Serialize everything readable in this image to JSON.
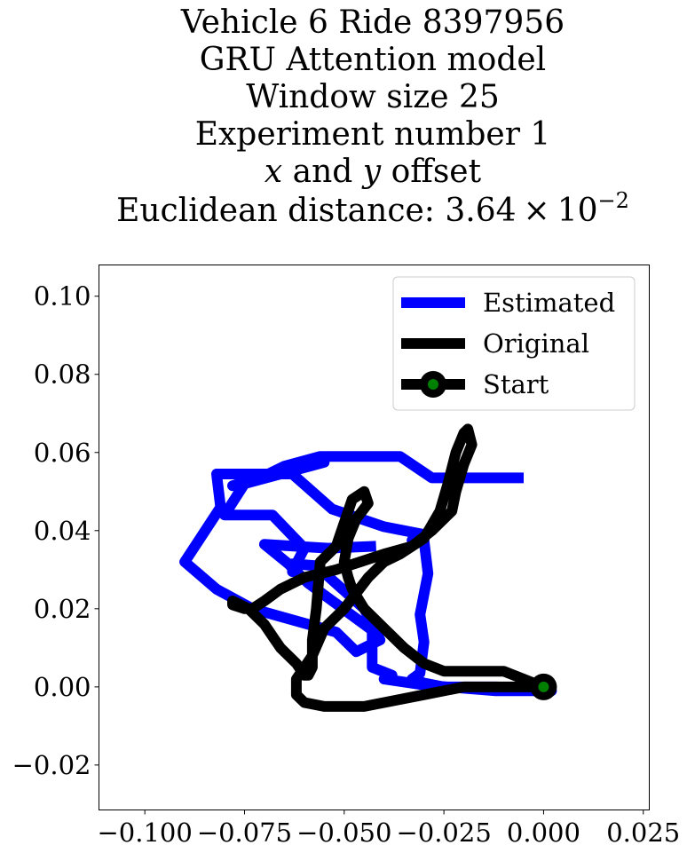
{
  "chart_data": {
    "type": "line",
    "title_lines": [
      "Vehicle 6 Ride 8397956",
      "GRU Attention model",
      "Window size 25",
      "Experiment number 1",
      "x and y offset",
      "Euclidean distance: 3.64 × 10−2"
    ],
    "title_rich": {
      "offset_x": "x",
      "offset_and": " and ",
      "offset_y": "y",
      "offset_rest": " offset",
      "dist_prefix": "Euclidean distance: 3.64",
      "dist_times": "×",
      "dist_base": "10",
      "dist_exp": "−2"
    },
    "xlim": [
      -0.1115,
      0.0265
    ],
    "ylim": [
      -0.0315,
      0.108
    ],
    "xticks": [
      {
        "value": -0.1,
        "label": "−0.100"
      },
      {
        "value": -0.075,
        "label": "−0.075"
      },
      {
        "value": -0.05,
        "label": "−0.050"
      },
      {
        "value": -0.025,
        "label": "−0.025"
      },
      {
        "value": 0.0,
        "label": "0.000"
      },
      {
        "value": 0.025,
        "label": "0.025"
      }
    ],
    "yticks": [
      {
        "value": 0.1,
        "label": "0.10"
      },
      {
        "value": 0.08,
        "label": "0.08"
      },
      {
        "value": 0.06,
        "label": "0.06"
      },
      {
        "value": 0.04,
        "label": "0.04"
      },
      {
        "value": 0.02,
        "label": "0.02"
      },
      {
        "value": 0.0,
        "label": "0.00"
      },
      {
        "value": -0.02,
        "label": "−0.02"
      }
    ],
    "grid": false,
    "legend_position": "top-right",
    "series": [
      {
        "name": "Estimated",
        "color": "#0000ff",
        "x": [
          -0.005,
          -0.028,
          -0.036,
          -0.047,
          -0.056,
          -0.065,
          -0.07,
          -0.075,
          -0.078,
          -0.058,
          -0.055,
          -0.075,
          -0.08,
          -0.068,
          -0.06,
          -0.063,
          -0.063,
          -0.057,
          -0.045,
          -0.041,
          -0.047,
          -0.052,
          -0.073,
          -0.082,
          -0.09,
          -0.081,
          -0.082,
          -0.063,
          -0.053,
          -0.04,
          -0.03,
          -0.031,
          -0.033,
          -0.03,
          -0.029,
          -0.031,
          -0.03,
          -0.031,
          -0.033,
          -0.03,
          -0.025,
          -0.018,
          -0.012,
          0.0,
          0.002,
          -0.012,
          -0.03,
          -0.04,
          -0.038,
          -0.043,
          -0.043,
          -0.059,
          -0.064,
          -0.07,
          -0.054,
          -0.042
        ],
        "y": [
          0.0535,
          0.0535,
          0.059,
          0.059,
          0.059,
          0.0565,
          0.054,
          0.052,
          0.0515,
          0.058,
          0.0575,
          0.052,
          0.044,
          0.044,
          0.0355,
          0.0295,
          0.0315,
          0.031,
          0.02,
          0.012,
          0.009,
          0.014,
          0.02,
          0.025,
          0.032,
          0.046,
          0.0545,
          0.0545,
          0.0455,
          0.041,
          0.039,
          0.0375,
          0.0375,
          0.0375,
          0.029,
          0.0185,
          0.0115,
          0.0035,
          0.002,
          0.001,
          0.0,
          0.0,
          0.0,
          -0.0005,
          -0.001,
          -0.001,
          0.0005,
          0.002,
          0.003,
          0.005,
          0.0145,
          0.0265,
          0.0315,
          0.0365,
          0.0355,
          0.036
        ]
      },
      {
        "name": "Original",
        "color": "#000000",
        "x": [
          0.0,
          -0.01,
          -0.02,
          -0.03,
          -0.04,
          -0.045,
          -0.05,
          -0.055,
          -0.06,
          -0.062,
          -0.062,
          -0.058,
          -0.055,
          -0.05,
          -0.044,
          -0.04,
          -0.036,
          -0.03,
          -0.026,
          -0.024,
          -0.022,
          -0.02,
          -0.019,
          -0.018,
          -0.02,
          -0.022,
          -0.023,
          -0.028,
          -0.033,
          -0.04,
          -0.046,
          -0.052,
          -0.06,
          -0.066,
          -0.07,
          -0.073,
          -0.075,
          -0.078,
          -0.078,
          -0.074,
          -0.07,
          -0.068,
          -0.066,
          -0.062,
          -0.06,
          -0.059,
          -0.058,
          -0.058,
          -0.057,
          -0.056,
          -0.052,
          -0.05,
          -0.048,
          -0.045,
          -0.044,
          -0.047,
          -0.049,
          -0.05,
          -0.049,
          -0.048,
          -0.045,
          -0.04,
          -0.035,
          -0.03,
          -0.025,
          -0.02,
          -0.015,
          -0.01,
          -0.005,
          0.0
        ],
        "y": [
          0.0,
          0.0,
          0.0,
          -0.002,
          -0.004,
          -0.005,
          -0.005,
          -0.005,
          -0.004,
          -0.002,
          0.002,
          0.008,
          0.015,
          0.02,
          0.028,
          0.032,
          0.034,
          0.038,
          0.045,
          0.052,
          0.06,
          0.065,
          0.066,
          0.062,
          0.057,
          0.05,
          0.045,
          0.04,
          0.036,
          0.034,
          0.032,
          0.03,
          0.028,
          0.025,
          0.022,
          0.02,
          0.02,
          0.021,
          0.022,
          0.02,
          0.016,
          0.013,
          0.01,
          0.006,
          0.003,
          0.003,
          0.005,
          0.012,
          0.02,
          0.032,
          0.036,
          0.042,
          0.048,
          0.05,
          0.047,
          0.043,
          0.038,
          0.032,
          0.028,
          0.025,
          0.02,
          0.015,
          0.01,
          0.006,
          0.004,
          0.004,
          0.004,
          0.004,
          0.002,
          0.0
        ]
      }
    ],
    "start": {
      "name": "Start",
      "x": 0.0,
      "y": 0.0,
      "outer_color": "#000000",
      "inner_color": "#008000"
    }
  }
}
